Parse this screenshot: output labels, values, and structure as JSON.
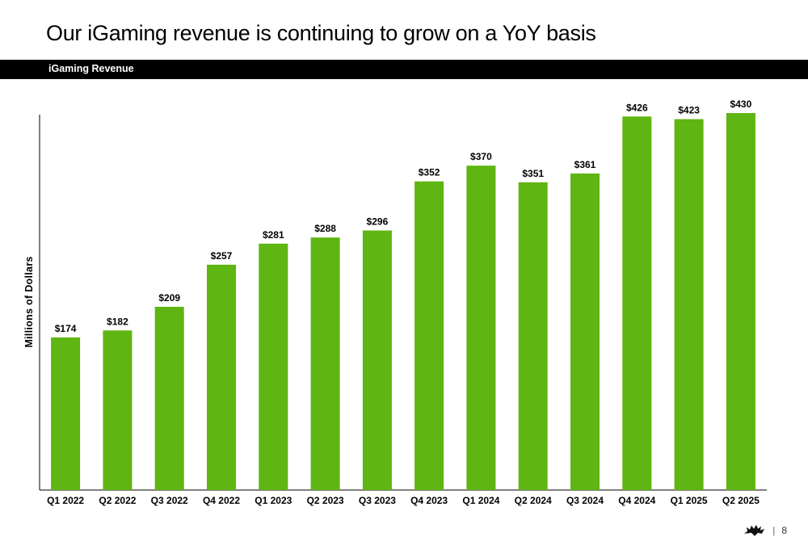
{
  "slide": {
    "title": "Our iGaming revenue is continuing to grow on a YoY basis",
    "section_label": "iGaming Revenue",
    "page_number": "8",
    "separator": "|",
    "logo_icon": "crown-logo-icon"
  },
  "colors": {
    "bar": "#5fb511",
    "section_bar": "#000000"
  },
  "chart_data": {
    "type": "bar",
    "title": "",
    "xlabel": "",
    "ylabel": "Millions of Dollars",
    "ylim": [
      0,
      430
    ],
    "grid": false,
    "categories": [
      "Q1 2022",
      "Q2 2022",
      "Q3 2022",
      "Q4 2022",
      "Q1 2023",
      "Q2 2023",
      "Q3 2023",
      "Q4 2023",
      "Q1 2024",
      "Q2 2024",
      "Q3 2024",
      "Q4 2024",
      "Q1 2025",
      "Q2 2025"
    ],
    "values": [
      174,
      182,
      209,
      257,
      281,
      288,
      296,
      352,
      370,
      351,
      361,
      426,
      423,
      430
    ],
    "value_labels": [
      "$174",
      "$182",
      "$209",
      "$257",
      "$281",
      "$288",
      "$296",
      "$352",
      "$370",
      "$351",
      "$361",
      "$426",
      "$423",
      "$430"
    ]
  }
}
